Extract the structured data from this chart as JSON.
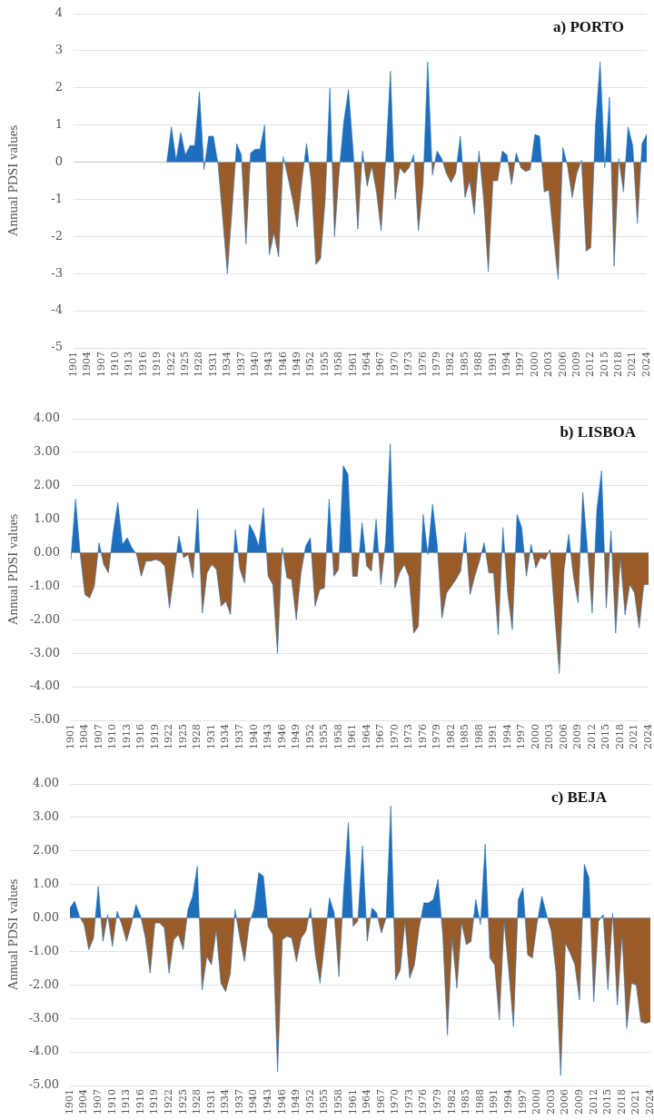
{
  "chart_data": [
    {
      "type": "area",
      "title": "a) PORTO",
      "ylabel": "Annual PDSI values",
      "categories": [
        "1901",
        null,
        null,
        "1904",
        null,
        null,
        "1907",
        null,
        null,
        "1910",
        null,
        null,
        "1913",
        null,
        null,
        "1916",
        null,
        null,
        "1919",
        null,
        null,
        "1922",
        null,
        null,
        "1925",
        null,
        null,
        "1928",
        null,
        null,
        "1931",
        null,
        null,
        "1934",
        null,
        null,
        "1937",
        null,
        null,
        "1940",
        null,
        null,
        "1943",
        null,
        null,
        "1946",
        null,
        null,
        "1949",
        null,
        null,
        "1952",
        null,
        null,
        "1955",
        null,
        null,
        "1958",
        null,
        null,
        "1961",
        null,
        null,
        "1964",
        null,
        null,
        "1967",
        null,
        null,
        "1970",
        null,
        null,
        "1973",
        null,
        null,
        "1976",
        null,
        null,
        "1979",
        null,
        null,
        "1982",
        null,
        null,
        "1985",
        null,
        null,
        "1988",
        null,
        null,
        "1991",
        null,
        null,
        "1994",
        null,
        null,
        "1997",
        null,
        null,
        "2000",
        null,
        null,
        "2003",
        null,
        null,
        "2006",
        null,
        null,
        "2009",
        null,
        null,
        "2012",
        null,
        null,
        "2015",
        null,
        null,
        "2018",
        null,
        null,
        "2021",
        null,
        null,
        "2024"
      ],
      "series": [
        {
          "values": [
            null,
            null,
            null,
            null,
            null,
            null,
            null,
            null,
            null,
            null,
            null,
            null,
            null,
            null,
            null,
            null,
            null,
            null,
            null,
            null,
            0,
            0.95,
            0.05,
            0.8,
            0.2,
            0.45,
            0.45,
            1.9,
            -0.2,
            0.7,
            0.7,
            -0.05,
            -1.5,
            -3,
            -1.3,
            0.5,
            0.2,
            -2.2,
            0.25,
            0.35,
            0.35,
            1,
            -2.5,
            -1.9,
            -2.55,
            0.15,
            -0.4,
            -1,
            -1.75,
            -0.5,
            0.5,
            -0.5,
            -2.75,
            -2.6,
            -1,
            2,
            -2,
            -0.25,
            1.1,
            1.95,
            0.3,
            -1.8,
            0.3,
            -0.65,
            -0.1,
            -0.8,
            -1.85,
            0.1,
            2.45,
            -1,
            -0.15,
            -0.3,
            -0.15,
            0.2,
            -1.85,
            -0.6,
            2.7,
            -0.35,
            0.3,
            0.1,
            -0.3,
            -0.55,
            -0.3,
            0.7,
            -0.95,
            -0.5,
            -1.4,
            0.3,
            -1,
            -2.95,
            -0.5,
            -0.5,
            0.3,
            0.2,
            -0.6,
            0.25,
            -0.15,
            -0.25,
            -0.2,
            0.75,
            0.7,
            -0.8,
            -0.75,
            -2,
            -3.15,
            0.4,
            -0.1,
            -0.95,
            -0.3,
            0.05,
            -2.4,
            -2.3,
            1,
            2.7,
            -0.15,
            1.75,
            -2.8,
            0.1,
            -0.8,
            0.95,
            0.45,
            -1.65,
            0.5,
            0.75
          ],
          "colors": [
            null,
            null,
            null,
            null,
            null,
            null,
            null,
            null,
            null,
            null,
            null,
            null,
            null,
            null,
            null,
            null,
            null,
            null,
            null,
            null,
            "#1e6ebe",
            "#1e6ebe",
            "#1e6ebe",
            "#1e6ebe",
            "#1e6ebe",
            "#1e6ebe",
            "#1e6ebe",
            "#1e6ebe",
            "#995c28",
            "#1e6ebe",
            "#1e6ebe",
            "#995c28",
            "#995c28",
            "#995c28",
            "#995c28",
            "#1e6ebe",
            "#1e6ebe",
            "#995c28",
            "#1e6ebe",
            "#1e6ebe",
            "#1e6ebe",
            "#1e6ebe",
            "#995c28",
            "#995c28",
            "#995c28",
            "#1e6ebe",
            "#995c28",
            "#995c28",
            "#995c28",
            "#995c28",
            "#1e6ebe",
            "#995c28",
            "#995c28",
            "#995c28",
            "#995c28",
            "#1e6ebe",
            "#995c28",
            "#995c28",
            "#1e6ebe",
            "#1e6ebe",
            "#1e6ebe",
            "#995c28",
            "#1e6ebe",
            "#995c28",
            "#995c28",
            "#995c28",
            "#995c28",
            "#1e6ebe",
            "#1e6ebe",
            "#995c28",
            "#995c28",
            "#995c28",
            "#995c28",
            "#1e6ebe",
            "#995c28",
            "#995c28",
            "#1e6ebe",
            "#995c28",
            "#1e6ebe",
            "#1e6ebe",
            "#995c28",
            "#995c28",
            "#995c28",
            "#1e6ebe",
            "#995c28",
            "#995c28",
            "#995c28",
            "#1e6ebe",
            "#995c28",
            "#995c28",
            "#995c28",
            "#995c28",
            "#1e6ebe",
            "#1e6ebe",
            "#995c28",
            "#1e6ebe",
            "#995c28",
            "#995c28",
            "#995c28",
            "#1e6ebe",
            "#1e6ebe",
            "#995c28",
            "#995c28",
            "#995c28",
            "#995c28",
            "#1e6ebe",
            "#995c28",
            "#995c28",
            "#995c28",
            "#1e6ebe",
            "#995c28",
            "#995c28",
            "#1e6ebe",
            "#1e6ebe",
            "#995c28",
            "#1e6ebe",
            "#995c28",
            "#1e6ebe",
            "#995c28",
            "#1e6ebe",
            "#1e6ebe",
            "#995c28",
            "#1e6ebe",
            "#1e6ebe"
          ]
        }
      ],
      "ylim": [
        -5,
        4
      ],
      "yticks": [
        -5,
        -4,
        -3,
        -2,
        -1,
        0,
        1,
        2,
        3,
        4
      ],
      "grid": "y"
    },
    {
      "type": "area",
      "title": "b) LISBOA",
      "ylabel": "Annual PDSI values",
      "categories": [
        "1901",
        null,
        null,
        "1904",
        null,
        null,
        "1907",
        null,
        null,
        "1910",
        null,
        null,
        "1913",
        null,
        null,
        "1916",
        null,
        null,
        "1919",
        null,
        null,
        "1922",
        null,
        null,
        "1925",
        null,
        null,
        "1928",
        null,
        null,
        "1931",
        null,
        null,
        "1934",
        null,
        null,
        "1937",
        null,
        null,
        "1940",
        null,
        null,
        "1943",
        null,
        null,
        "1946",
        null,
        null,
        "1949",
        null,
        null,
        "1952",
        null,
        null,
        "1955",
        null,
        null,
        "1958",
        null,
        null,
        "1961",
        null,
        null,
        "1964",
        null,
        null,
        "1967",
        null,
        null,
        "1970",
        null,
        null,
        "1973",
        null,
        null,
        "1976",
        null,
        null,
        "1979",
        null,
        null,
        "1982",
        null,
        null,
        "1985",
        null,
        null,
        "1988",
        null,
        null,
        "1991",
        null,
        null,
        "1994",
        null,
        null,
        "1997",
        null,
        null,
        "2000",
        null,
        null,
        "2003",
        null,
        null,
        "2006",
        null,
        null,
        "2009",
        null,
        null,
        "2012",
        null,
        null,
        "2015",
        null,
        null,
        "2018",
        null,
        null,
        "2021",
        null,
        null,
        "2024"
      ],
      "series": [
        {
          "values": [
            -0.2,
            1.6,
            -0.05,
            -1.25,
            -1.35,
            -1,
            0.3,
            -0.35,
            -0.6,
            0.6,
            1.5,
            0.25,
            0.45,
            0.15,
            -0.05,
            -0.7,
            -0.25,
            -0.25,
            -0.2,
            -0.25,
            -0.4,
            -1.65,
            -0.6,
            0.5,
            -0.15,
            -0.05,
            -0.75,
            1.3,
            -1.8,
            -0.6,
            -0.35,
            -0.5,
            -1.6,
            -1.45,
            -1.85,
            0.7,
            -0.5,
            -0.9,
            0.85,
            0.6,
            0.2,
            1.35,
            -0.7,
            -0.95,
            -3,
            0.15,
            -0.75,
            -0.8,
            -2,
            -0.6,
            0.2,
            0.45,
            -1.6,
            -1.1,
            -1.05,
            1.6,
            -0.7,
            -0.5,
            2.6,
            2.35,
            -0.7,
            -0.7,
            0.9,
            -0.4,
            -0.55,
            1,
            -0.95,
            0.3,
            3.25,
            -1.05,
            -0.6,
            -0.35,
            -0.7,
            -2.4,
            -2.2,
            1.15,
            -0.05,
            1.45,
            0.25,
            -1.95,
            -1.2,
            -1,
            -0.8,
            -0.55,
            0.6,
            -1.25,
            -0.7,
            -0.25,
            0.3,
            -0.6,
            -0.6,
            -2.45,
            0.75,
            -1.2,
            -2.3,
            1.15,
            0.75,
            -0.7,
            0.25,
            -0.45,
            -0.15,
            -0.2,
            0.1,
            -1.8,
            -3.6,
            -0.5,
            0.55,
            -0.7,
            -1.5,
            1.8,
            0.1,
            -1.8,
            1.3,
            2.45,
            -1.65,
            0.65,
            -2.4,
            -0.15,
            -1.85,
            -0.95,
            -1.2,
            -2.25,
            -0.95,
            -0.95
          ],
          "colors": [
            "#995c28",
            "#1e6ebe",
            "#995c28",
            "#995c28",
            "#995c28",
            "#995c28",
            "#1e6ebe",
            "#995c28",
            "#995c28",
            "#1e6ebe",
            "#1e6ebe",
            "#1e6ebe",
            "#1e6ebe",
            "#1e6ebe",
            "#995c28",
            "#995c28",
            "#995c28",
            "#995c28",
            "#995c28",
            "#995c28",
            "#995c28",
            "#995c28",
            "#995c28",
            "#1e6ebe",
            "#995c28",
            "#995c28",
            "#995c28",
            "#1e6ebe",
            "#995c28",
            "#995c28",
            "#995c28",
            "#995c28",
            "#995c28",
            "#995c28",
            "#995c28",
            "#1e6ebe",
            "#995c28",
            "#995c28",
            "#1e6ebe",
            "#1e6ebe",
            "#1e6ebe",
            "#1e6ebe",
            "#995c28",
            "#995c28",
            "#995c28",
            "#1e6ebe",
            "#995c28",
            "#995c28",
            "#995c28",
            "#995c28",
            "#1e6ebe",
            "#1e6ebe",
            "#995c28",
            "#995c28",
            "#995c28",
            "#1e6ebe",
            "#995c28",
            "#995c28",
            "#1e6ebe",
            "#1e6ebe",
            "#995c28",
            "#995c28",
            "#1e6ebe",
            "#995c28",
            "#995c28",
            "#1e6ebe",
            "#995c28",
            "#1e6ebe",
            "#1e6ebe",
            "#995c28",
            "#995c28",
            "#995c28",
            "#995c28",
            "#995c28",
            "#995c28",
            "#1e6ebe",
            "#995c28",
            "#1e6ebe",
            "#1e6ebe",
            "#995c28",
            "#995c28",
            "#995c28",
            "#995c28",
            "#995c28",
            "#1e6ebe",
            "#995c28",
            "#995c28",
            "#995c28",
            "#1e6ebe",
            "#995c28",
            "#995c28",
            "#995c28",
            "#1e6ebe",
            "#995c28",
            "#995c28",
            "#1e6ebe",
            "#1e6ebe",
            "#995c28",
            "#1e6ebe",
            "#995c28",
            "#995c28",
            "#995c28",
            "#1e6ebe",
            "#995c28",
            "#995c28",
            "#995c28",
            "#1e6ebe",
            "#995c28",
            "#995c28",
            "#1e6ebe",
            "#1e6ebe",
            "#995c28",
            "#1e6ebe",
            "#1e6ebe",
            "#995c28",
            "#1e6ebe",
            "#995c28",
            "#995c28",
            "#995c28",
            "#995c28",
            "#995c28",
            "#995c28",
            "#995c28",
            "#995c28"
          ]
        }
      ],
      "ylim": [
        -5,
        4
      ],
      "yticks": [
        {
          "value": -5,
          "label": "-5.00"
        },
        {
          "value": -4,
          "label": "-4.00"
        },
        {
          "value": -3,
          "label": "-3.00"
        },
        {
          "value": -2,
          "label": "-2.00"
        },
        {
          "value": -1,
          "label": "-1.00"
        },
        {
          "value": 0,
          "label": "0.00"
        },
        {
          "value": 1,
          "label": "1.00"
        },
        {
          "value": 2,
          "label": "2.00"
        },
        {
          "value": 3,
          "label": "3.00"
        },
        {
          "value": 4,
          "label": "4.00"
        }
      ],
      "grid": "y"
    },
    {
      "type": "area",
      "title": "c) BEJA",
      "ylabel": "Annual PDSI values",
      "categories": [
        "1901",
        null,
        null,
        "1904",
        null,
        null,
        "1907",
        null,
        null,
        "1910",
        null,
        null,
        "1913",
        null,
        null,
        "1916",
        null,
        null,
        "1919",
        null,
        null,
        "1922",
        null,
        null,
        "1925",
        null,
        null,
        "1928",
        null,
        null,
        "1931",
        null,
        null,
        "1934",
        null,
        null,
        "1937",
        null,
        null,
        "1940",
        null,
        null,
        "1943",
        null,
        null,
        "1946",
        null,
        null,
        "1949",
        null,
        null,
        "1952",
        null,
        null,
        "1955",
        null,
        null,
        "1958",
        null,
        null,
        "1961",
        null,
        null,
        "1964",
        null,
        null,
        "1967",
        null,
        null,
        "1970",
        null,
        null,
        "1973",
        null,
        null,
        "1976",
        null,
        null,
        "1979",
        null,
        null,
        "1982",
        null,
        null,
        "1985",
        null,
        null,
        "1988",
        null,
        null,
        "1991",
        null,
        null,
        "1994",
        null,
        null,
        "1997",
        null,
        null,
        "2000",
        null,
        null,
        "2003",
        null,
        null,
        "2006",
        null,
        null,
        "2009",
        null,
        null,
        "2012",
        null,
        null,
        "2015",
        null,
        null,
        "2018",
        null,
        null,
        "2021",
        null,
        null,
        "2024"
      ],
      "series": [
        {
          "values": [
            0.3,
            0.5,
            0.05,
            -0.2,
            -0.95,
            -0.6,
            0.95,
            -0.7,
            0.1,
            -0.85,
            0.2,
            -0.2,
            -0.7,
            -0.2,
            0.4,
            0.05,
            -0.6,
            -1.65,
            -0.15,
            -0.15,
            -0.3,
            -1.65,
            -0.65,
            -0.5,
            -0.95,
            0.25,
            0.65,
            1.55,
            -2.15,
            -1.15,
            -1.4,
            -0.35,
            -1.95,
            -2.2,
            -1.65,
            0.25,
            -0.6,
            -1.3,
            -0.15,
            0.25,
            1.35,
            1.25,
            -0.25,
            -0.5,
            -4.6,
            -0.65,
            -0.55,
            -0.6,
            -1.3,
            -0.6,
            -0.4,
            0.3,
            -1.1,
            -1.95,
            -0.7,
            0.6,
            0.15,
            -1.75,
            0.8,
            2.85,
            -0.25,
            -0.1,
            2.15,
            -0.7,
            0.3,
            0.15,
            -0.45,
            0,
            3.35,
            -1.85,
            -1.55,
            -0.1,
            -1.8,
            -1.4,
            -0.3,
            0.45,
            0.45,
            0.55,
            1.15,
            -0.5,
            -3.5,
            -0.6,
            -2.1,
            -0.15,
            -0.8,
            -0.7,
            0.55,
            -0.2,
            2.2,
            -1.2,
            -1.4,
            -3.05,
            -0.1,
            -1.6,
            -3.25,
            0.55,
            0.9,
            -1.1,
            -1.2,
            -0.15,
            0.65,
            0.1,
            -0.4,
            -1.6,
            -4.7,
            -0.75,
            -1.05,
            -1.4,
            -2.45,
            1.6,
            1.2,
            -2.5,
            -0.1,
            0.1,
            -2.15,
            0.15,
            -2.6,
            -0.5,
            -3.3,
            -1.95,
            -2,
            -3.1,
            -3.15,
            -3.1
          ],
          "colors": [
            "#1e6ebe",
            "#1e6ebe",
            "#1e6ebe",
            "#995c28",
            "#995c28",
            "#995c28",
            "#1e6ebe",
            "#995c28",
            "#1e6ebe",
            "#995c28",
            "#1e6ebe",
            "#995c28",
            "#995c28",
            "#995c28",
            "#1e6ebe",
            "#1e6ebe",
            "#995c28",
            "#995c28",
            "#995c28",
            "#995c28",
            "#995c28",
            "#995c28",
            "#995c28",
            "#995c28",
            "#995c28",
            "#1e6ebe",
            "#1e6ebe",
            "#1e6ebe",
            "#995c28",
            "#995c28",
            "#995c28",
            "#995c28",
            "#995c28",
            "#995c28",
            "#995c28",
            "#1e6ebe",
            "#995c28",
            "#995c28",
            "#995c28",
            "#1e6ebe",
            "#1e6ebe",
            "#1e6ebe",
            "#995c28",
            "#995c28",
            "#995c28",
            "#995c28",
            "#995c28",
            "#995c28",
            "#995c28",
            "#995c28",
            "#995c28",
            "#1e6ebe",
            "#995c28",
            "#995c28",
            "#995c28",
            "#1e6ebe",
            "#1e6ebe",
            "#995c28",
            "#1e6ebe",
            "#1e6ebe",
            "#995c28",
            "#995c28",
            "#1e6ebe",
            "#995c28",
            "#1e6ebe",
            "#1e6ebe",
            "#995c28",
            "#1e6ebe",
            "#1e6ebe",
            "#995c28",
            "#995c28",
            "#995c28",
            "#995c28",
            "#995c28",
            "#995c28",
            "#1e6ebe",
            "#1e6ebe",
            "#1e6ebe",
            "#1e6ebe",
            "#995c28",
            "#995c28",
            "#995c28",
            "#995c28",
            "#995c28",
            "#995c28",
            "#995c28",
            "#1e6ebe",
            "#995c28",
            "#1e6ebe",
            "#995c28",
            "#995c28",
            "#995c28",
            "#995c28",
            "#995c28",
            "#995c28",
            "#1e6ebe",
            "#1e6ebe",
            "#995c28",
            "#995c28",
            "#995c28",
            "#1e6ebe",
            "#1e6ebe",
            "#995c28",
            "#995c28",
            "#995c28",
            "#995c28",
            "#995c28",
            "#995c28",
            "#995c28",
            "#1e6ebe",
            "#1e6ebe",
            "#995c28",
            "#995c28",
            "#1e6ebe",
            "#995c28",
            "#1e6ebe",
            "#995c28",
            "#995c28",
            "#995c28",
            "#995c28",
            "#995c28",
            "#995c28",
            "#995c28",
            "#995c28"
          ]
        }
      ],
      "ylim": [
        -5,
        4
      ],
      "yticks": [
        {
          "value": -5,
          "label": "-5.00"
        },
        {
          "value": -4,
          "label": "-4.00"
        },
        {
          "value": -3,
          "label": "-3.00"
        },
        {
          "value": -2,
          "label": "-2.00"
        },
        {
          "value": -1,
          "label": "-1.00"
        },
        {
          "value": 0,
          "label": "0.00"
        },
        {
          "value": 1,
          "label": "1.00"
        },
        {
          "value": 2,
          "label": "2.00"
        },
        {
          "value": 3,
          "label": "3.00"
        },
        {
          "value": 4,
          "label": "4.00"
        }
      ],
      "grid": "y"
    }
  ]
}
